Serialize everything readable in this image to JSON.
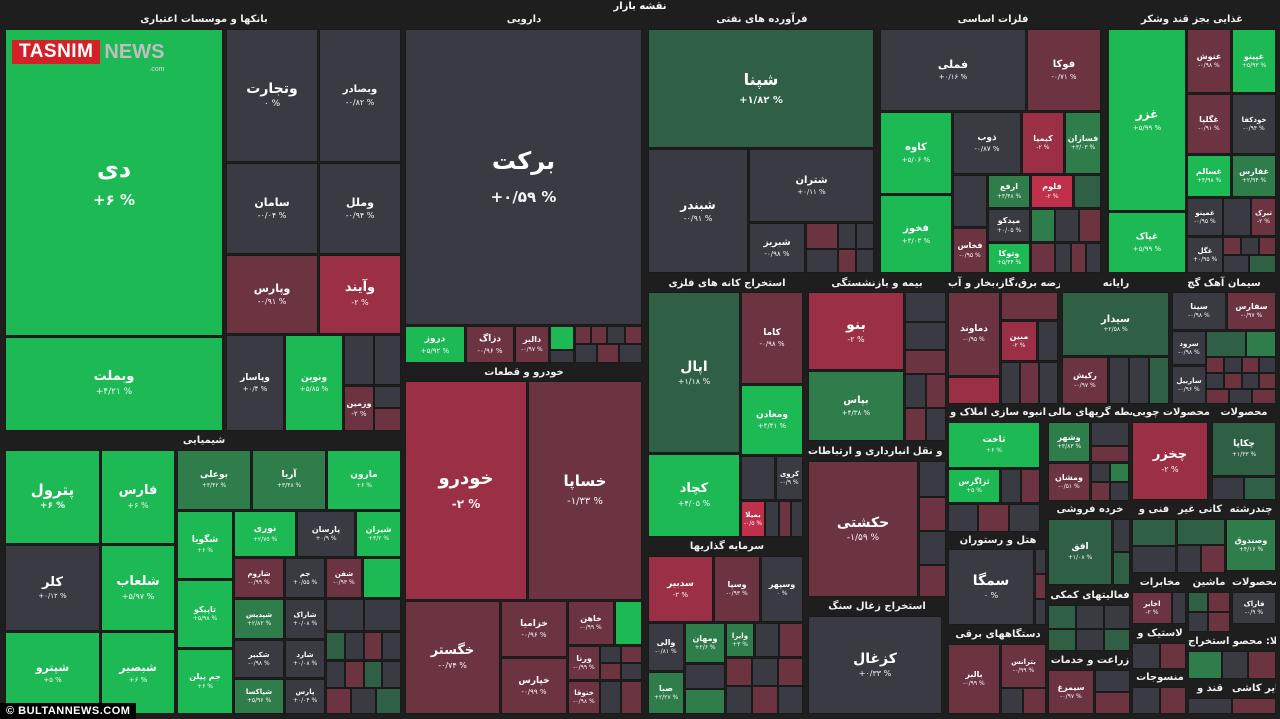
{
  "header": {
    "title": "نقشه بازار"
  },
  "logo": {
    "brand": "TASNIM",
    "suffix": "NEWS",
    "domain": ".com"
  },
  "watermark": "© BULTANNEWS.COM",
  "colors": {
    "g1": "#1db954",
    "g2": "#19a64c",
    "g3": "#2f7d4b",
    "g4": "#2f5f45",
    "n": "#3a3a43",
    "r1": "#6c3441",
    "r2": "#9a2f45",
    "r3": "#c0304a"
  },
  "sectors": [
    {
      "label": "بانکها و موسسات اعتباری"
    },
    {
      "label": "دارویی"
    },
    {
      "label": "فرآورده های نفتی"
    },
    {
      "label": "فلزات اساسی"
    },
    {
      "label": "غذایی بجز قند وشکر"
    },
    {
      "label": "خودرو و قطعات"
    },
    {
      "label": "استخراج کانه های فلزی"
    },
    {
      "label": "بیمه و بازنشستگی"
    },
    {
      "label": "عرضه برق،گاز،بخار و آب"
    },
    {
      "label": "رایانه"
    },
    {
      "label": "سیمان آهک گچ"
    },
    {
      "label": "شیمیایی"
    },
    {
      "label": "انبوه سازی املاک و"
    },
    {
      "label": "واسطه گریهای مالی"
    },
    {
      "label": "محصولات چوبی"
    },
    {
      "label": "محصولات"
    },
    {
      "label": "حمل و نقل انبارداری و ارتباطات"
    },
    {
      "label": "سرمایه گذاریها"
    },
    {
      "label": "استخراج زغال سنگ"
    },
    {
      "label": "هتل و رستوران"
    },
    {
      "label": "خرده فروشی"
    },
    {
      "label": "فنی و"
    },
    {
      "label": "کانی غیر"
    },
    {
      "label": "چندرشته"
    },
    {
      "label": "مخابرات"
    },
    {
      "label": "ماشین"
    },
    {
      "label": "محصولات"
    },
    {
      "label": "فعالیتهای کمکی"
    },
    {
      "label": "لاستیک و"
    },
    {
      "label": "دستگاههای برقی"
    },
    {
      "label": "اطلا: محصو استخراج"
    },
    {
      "label": "زراعت و خدمات"
    },
    {
      "label": "منسوجات"
    },
    {
      "label": "قند و"
    },
    {
      "label": "سایر کاشی"
    }
  ],
  "tiles": [
    {
      "name": "دی",
      "change": "+۶ %"
    },
    {
      "name": "وبملت",
      "change": "+۴/۲۱ %"
    },
    {
      "name": "وتجارت",
      "change": "۰ %"
    },
    {
      "name": "وبصادر",
      "change": "-۰/۸۲ %"
    },
    {
      "name": "سامان",
      "change": "-۰/۰۴ %"
    },
    {
      "name": "وملل",
      "change": "-۰/۹۴ %"
    },
    {
      "name": "وپارس",
      "change": "-۰/۹۱ %"
    },
    {
      "name": "وآیند",
      "change": "-۲ %"
    },
    {
      "name": "وپاسار",
      "change": "+۰/۴ %"
    },
    {
      "name": "ونوین",
      "change": "+۵/۸۵ %"
    },
    {
      "name": "وزمین",
      "change": "-۲ %"
    },
    {
      "name": "برکت",
      "change": "+۰/۵۹ %"
    },
    {
      "name": "دروز",
      "change": "+۵/۹۲ %"
    },
    {
      "name": "دزاگ",
      "change": "-۰/۹۶ %"
    },
    {
      "name": "دالبر",
      "change": "-۰/۹۷ %"
    },
    {
      "name": "شپنا",
      "change": "+۱/۸۲ %"
    },
    {
      "name": "شبندر",
      "change": "-۰/۹۱ %"
    },
    {
      "name": "شتران",
      "change": "+۰/۱۱ %"
    },
    {
      "name": "شبریز",
      "change": "-۰/۹۸ %"
    },
    {
      "name": "فملی",
      "change": "+۰/۱۶ %"
    },
    {
      "name": "فوکا",
      "change": "-۰/۷۱ %"
    },
    {
      "name": "کاوه",
      "change": "+۵/۰۶ %"
    },
    {
      "name": "ذوب",
      "change": "-۰/۸۷ %"
    },
    {
      "name": "کیمیا",
      "change": "-۲ %"
    },
    {
      "name": "فسازان",
      "change": "+۳/۰۳ %"
    },
    {
      "name": "ارفع",
      "change": "+۴/۴۸ %"
    },
    {
      "name": "فلوم",
      "change": "-۲ %"
    },
    {
      "name": "میدکو",
      "change": "+۰/۰۵ %"
    },
    {
      "name": "فخوز",
      "change": "+۴/۰۳ %"
    },
    {
      "name": "فخاس",
      "change": "-۰/۹۵ %"
    },
    {
      "name": "وتوکا",
      "change": "+۵/۴۴ %"
    },
    {
      "name": "غزر",
      "change": "+۵/۹۹ %"
    },
    {
      "name": "غنوش",
      "change": "-۰/۹۸ %"
    },
    {
      "name": "غپینو",
      "change": "+۵/۹۳ %"
    },
    {
      "name": "غگلپا",
      "change": "-۰/۹۱ %"
    },
    {
      "name": "خودکفا",
      "change": "-۰/۹۴ %"
    },
    {
      "name": "غسالم",
      "change": "+۴/۹۸ %"
    },
    {
      "name": "غفارس",
      "change": "+۲/۹۴ %"
    },
    {
      "name": "غپاک",
      "change": "+۵/۹۹ %"
    },
    {
      "name": "غمینو",
      "change": "-۰/۹۵ %"
    },
    {
      "name": "تبرک",
      "change": "-۲ %"
    },
    {
      "name": "غگل",
      "change": "+۰/۹۵ %"
    },
    {
      "name": "خودرو",
      "change": "-۲ %"
    },
    {
      "name": "خساپا",
      "change": "-۱/۳۳ %"
    },
    {
      "name": "خگستر",
      "change": "-۰/۷۴ %"
    },
    {
      "name": "خزامیا",
      "change": "-۰/۹۶ %"
    },
    {
      "name": "خاهن",
      "change": "-۰/۹۹ %"
    },
    {
      "name": "خپارس",
      "change": "-۰/۹۹ %"
    },
    {
      "name": "ورنا",
      "change": "-۰/۹۹ %"
    },
    {
      "name": "ختوقا",
      "change": "-۰/۹۸ %"
    },
    {
      "name": "اپال",
      "change": "+۱/۱۸ %"
    },
    {
      "name": "کاما",
      "change": "-۰/۹۸ %"
    },
    {
      "name": "ومعادن",
      "change": "+۴/۴۱ %"
    },
    {
      "name": "کچاد",
      "change": "+۴/۰۵ %"
    },
    {
      "name": "کروی",
      "change": "-۰/۹ %"
    },
    {
      "name": "بمیلا",
      "change": "-۰/۵ %"
    },
    {
      "name": "بنو",
      "change": "-۲ %"
    },
    {
      "name": "بپاس",
      "change": "+۴/۳۸ %"
    },
    {
      "name": "دماوند",
      "change": "-۰/۹۵ %"
    },
    {
      "name": "مبین",
      "change": "-۲ %"
    },
    {
      "name": "سیدار",
      "change": "+۲/۵۸ %"
    },
    {
      "name": "رکیش",
      "change": "-۰/۹۷ %"
    },
    {
      "name": "سینا",
      "change": "-۰/۹۸ %"
    },
    {
      "name": "سفارس",
      "change": "-۰/۹۷ %"
    },
    {
      "name": "سرود",
      "change": "-۰/۹۸ %"
    },
    {
      "name": "ساربیل",
      "change": "-۰/۹۶ %"
    },
    {
      "name": "ثاخت",
      "change": "+۶ %"
    },
    {
      "name": "ثزاگرس",
      "change": "+۵ %"
    },
    {
      "name": "وشهر",
      "change": "+۳/۸۳ %"
    },
    {
      "name": "ومشان",
      "change": "-۰/۵۱ %"
    },
    {
      "name": "چخزر",
      "change": "-۲ %"
    },
    {
      "name": "چکاپا",
      "change": "+۱/۳۳ %"
    },
    {
      "name": "حکشتی",
      "change": "-۱/۵۹ %"
    },
    {
      "name": "سدبیر",
      "change": "-۲ %"
    },
    {
      "name": "وسپا",
      "change": "-۰/۹۳ %"
    },
    {
      "name": "وسپهر",
      "change": "۰ %"
    },
    {
      "name": "والی",
      "change": "-۰/۸۱ %"
    },
    {
      "name": "ومهان",
      "change": "+۲/۶ %"
    },
    {
      "name": "وایرا",
      "change": "+۳ %"
    },
    {
      "name": "صبا",
      "change": "+۲/۲۷ %"
    },
    {
      "name": "کزغال",
      "change": "+۰/۳۳ %"
    },
    {
      "name": "سمگا",
      "change": "۰ %"
    },
    {
      "name": "افق",
      "change": "+۱/۰۸ %"
    },
    {
      "name": "وصندوق",
      "change": "+۴/۱۶ %"
    },
    {
      "name": "اخابر",
      "change": "-۲ %"
    },
    {
      "name": "فاراک",
      "change": "-۰/۹ %"
    },
    {
      "name": "بترانس",
      "change": "-۰/۹۹ %"
    },
    {
      "name": "بالبر",
      "change": "-۰/۹۹ %"
    },
    {
      "name": "سیمرغ",
      "change": "-۰/۹۷ %"
    },
    {
      "name": "پترول",
      "change": "+۶ %"
    },
    {
      "name": "فارس",
      "change": "+۶ %"
    },
    {
      "name": "کلر",
      "change": "+۰/۱۲ %"
    },
    {
      "name": "شپترو",
      "change": "+۵ %"
    },
    {
      "name": "شلعاب",
      "change": "+۵/۹۷ %"
    },
    {
      "name": "شبصیر",
      "change": "+۶ %"
    },
    {
      "name": "بوعلی",
      "change": "+۳/۴۲ %"
    },
    {
      "name": "آریا",
      "change": "+۳/۴۸ %"
    },
    {
      "name": "مارون",
      "change": "+۶ %"
    },
    {
      "name": "شگویا",
      "change": "+۶ %"
    },
    {
      "name": "نوری",
      "change": "+۲/۷۵ %"
    },
    {
      "name": "پارسان",
      "change": "+۰/۹ %"
    },
    {
      "name": "شیران",
      "change": "+۳/۲ %"
    },
    {
      "name": "تاپیکو",
      "change": "+۵/۹۸ %"
    },
    {
      "name": "شاروم",
      "change": "-۰/۹۹ %"
    },
    {
      "name": "جم",
      "change": "+۰/۵۵ %"
    },
    {
      "name": "شفن",
      "change": "-۰/۹۳ %"
    },
    {
      "name": "جم پیلن",
      "change": "+۶ %"
    },
    {
      "name": "شپدیس",
      "change": "+۲/۸۲ %"
    },
    {
      "name": "شاراک",
      "change": "+۰/۰۸ %"
    },
    {
      "name": "شکبیر",
      "change": "-۰/۹۸ %"
    },
    {
      "name": "شارد",
      "change": "+۰/۰۸ %"
    },
    {
      "name": "شپاکسا",
      "change": "+۵/۹۶ %"
    },
    {
      "name": "پارس",
      "change": "+۰/۰۴ %"
    }
  ]
}
